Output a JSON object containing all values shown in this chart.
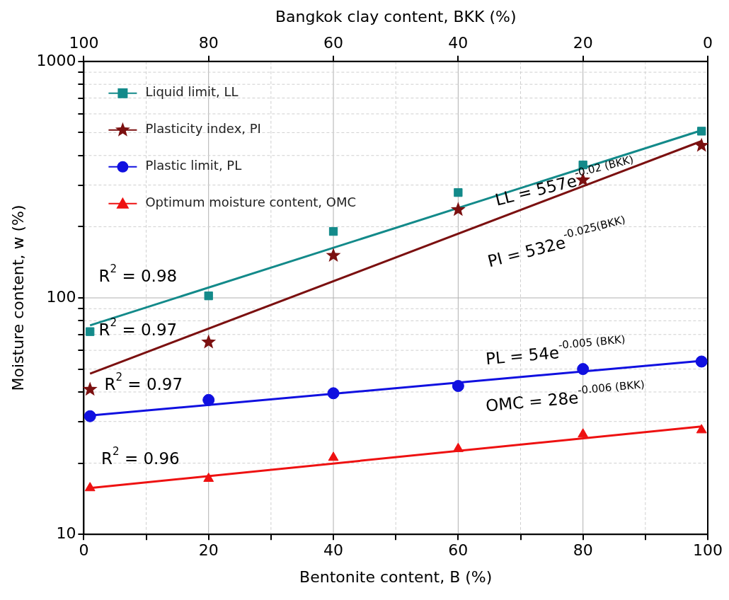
{
  "chart_data": {
    "type": "scatter",
    "xlabel": "Bentonite content, B (%)",
    "ylabel": "Moisture content, w (%)",
    "x2label": "Bangkok clay content, BKK (%)",
    "xlim": [
      0,
      100
    ],
    "xticks": [
      0,
      {
        "value": 10,
        "label": null
      },
      20,
      {
        "value": 30,
        "label": null
      },
      40,
      {
        "value": 50,
        "label": null
      },
      60,
      {
        "value": 70,
        "label": null
      },
      80,
      {
        "value": 90,
        "label": null
      },
      100
    ],
    "x2lim": [
      100,
      0
    ],
    "x2ticks": [
      100,
      80,
      60,
      40,
      20,
      0
    ],
    "ylim": [
      10,
      1000
    ],
    "log": "y",
    "yticks": [
      10,
      {
        "value": 20,
        "label": null
      },
      {
        "value": 30,
        "label": null
      },
      {
        "value": 40,
        "label": null
      },
      {
        "value": 50,
        "label": null
      },
      {
        "value": 60,
        "label": null
      },
      {
        "value": 70,
        "label": null
      },
      {
        "value": 80,
        "label": null
      },
      {
        "value": 90,
        "label": null
      },
      100,
      {
        "value": 200,
        "label": null
      },
      {
        "value": 300,
        "label": null
      },
      {
        "value": 400,
        "label": null
      },
      {
        "value": 500,
        "label": null
      },
      {
        "value": 600,
        "label": null
      },
      {
        "value": 700,
        "label": null
      },
      {
        "value": 800,
        "label": null
      },
      {
        "value": 900,
        "label": null
      },
      1000
    ],
    "grid": true,
    "legend": "top left",
    "series": [
      {
        "name": "Liquid limit, LL",
        "type": "scatter",
        "marker": "square",
        "color": "#138a8a",
        "x": [
          1,
          20,
          40,
          60,
          80,
          99
        ],
        "values": [
          72,
          102,
          191,
          279,
          365,
          507
        ]
      },
      {
        "name": "Plasticity index, PI",
        "type": "scatter",
        "marker": "star",
        "color": "#7b1010",
        "x": [
          1,
          20,
          40,
          60,
          80,
          99
        ],
        "values": [
          41,
          65,
          151,
          236,
          315,
          441
        ]
      },
      {
        "name": "Plastic limit, PL",
        "type": "scatter",
        "marker": "circle",
        "color": "#1010e0",
        "x": [
          1,
          20,
          40,
          60,
          80,
          99
        ],
        "values": [
          31.6,
          37,
          39.5,
          42.4,
          50,
          53.8
        ]
      },
      {
        "name": "Optimum moisture content, OMC",
        "type": "scatter",
        "marker": "triangle",
        "color": "#ee1111",
        "x": [
          1,
          20,
          40,
          60,
          80,
          99
        ],
        "values": [
          15.7,
          17.2,
          21.1,
          23,
          26.5,
          27.6
        ]
      },
      {
        "type": "line",
        "color": "#138a8a",
        "x": [
          1,
          99
        ],
        "values": [
          76.5,
          511
        ]
      },
      {
        "type": "line",
        "color": "#7b1010",
        "x": [
          1,
          99
        ],
        "values": [
          47.8,
          460
        ]
      },
      {
        "type": "line",
        "color": "#1010e0",
        "x": [
          1,
          99
        ],
        "values": [
          31.8,
          54.2
        ]
      },
      {
        "type": "line",
        "color": "#ee1111",
        "x": [
          1,
          99
        ],
        "values": [
          15.7,
          28.6
        ]
      }
    ],
    "annotations": [
      "LL = 557e$^{-0.02 (BKK)}$",
      "PI = 532e$^{-0.025(BKK)}$",
      "PL = 54e$^{-0.005 (BKK)}$",
      "OMC = 28e$^{-0.006 (BKK)}$",
      "R$^{2}$ = 0.98",
      "R$^{2}$ = 0.97",
      "R$^{2}$ = 0.97",
      "R$^{2}$ = 0.96"
    ]
  }
}
